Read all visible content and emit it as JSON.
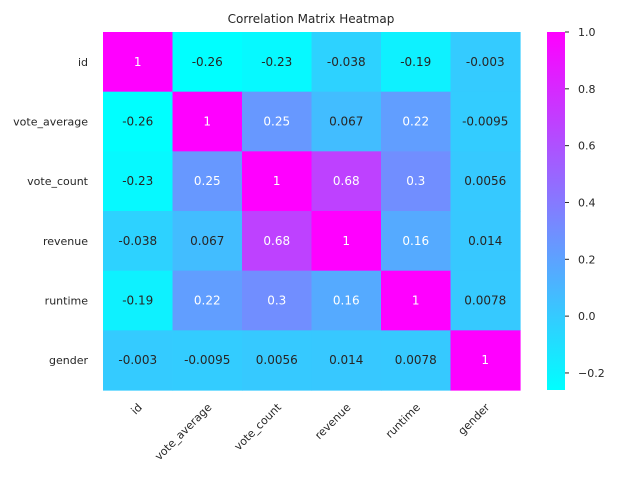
{
  "chart_data": {
    "type": "heatmap",
    "title": "Correlation Matrix Heatmap",
    "rows": [
      "id",
      "vote_average",
      "vote_count",
      "revenue",
      "runtime",
      "gender"
    ],
    "cols": [
      "id",
      "vote_average",
      "vote_count",
      "revenue",
      "runtime",
      "gender"
    ],
    "values": [
      [
        1,
        -0.26,
        -0.23,
        -0.038,
        -0.19,
        -0.003
      ],
      [
        -0.26,
        1,
        0.25,
        0.067,
        0.22,
        -0.0095
      ],
      [
        -0.23,
        0.25,
        1,
        0.68,
        0.3,
        0.0056
      ],
      [
        -0.038,
        0.067,
        0.68,
        1,
        0.16,
        0.014
      ],
      [
        -0.19,
        0.22,
        0.3,
        0.16,
        1,
        0.0078
      ],
      [
        -0.003,
        -0.0095,
        0.0056,
        0.014,
        0.0078,
        1
      ]
    ],
    "labels": [
      [
        "1",
        "-0.26",
        "-0.23",
        "-0.038",
        "-0.19",
        "-0.003"
      ],
      [
        "-0.26",
        "1",
        "0.25",
        "0.067",
        "0.22",
        "-0.0095"
      ],
      [
        "-0.23",
        "0.25",
        "1",
        "0.68",
        "0.3",
        "0.0056"
      ],
      [
        "-0.038",
        "0.067",
        "0.68",
        "1",
        "0.16",
        "0.014"
      ],
      [
        "-0.19",
        "0.22",
        "0.3",
        "0.16",
        "1",
        "0.0078"
      ],
      [
        "-0.003",
        "-0.0095",
        "0.0056",
        "0.014",
        "0.0078",
        "1"
      ]
    ],
    "colormap": "cool",
    "vmin": -0.26,
    "vmax": 1,
    "colorbar": {
      "ticks": [
        1.0,
        0.8,
        0.6,
        0.4,
        0.2,
        0.0,
        -0.2
      ],
      "tick_labels": [
        "1.0",
        "0.8",
        "0.6",
        "0.4",
        "0.2",
        "0.0",
        "−0.2"
      ]
    },
    "colors": {
      "low": "#00ffff",
      "high": "#ff00ff",
      "text_dark": "#262626",
      "text_light": "#ffffff"
    }
  }
}
